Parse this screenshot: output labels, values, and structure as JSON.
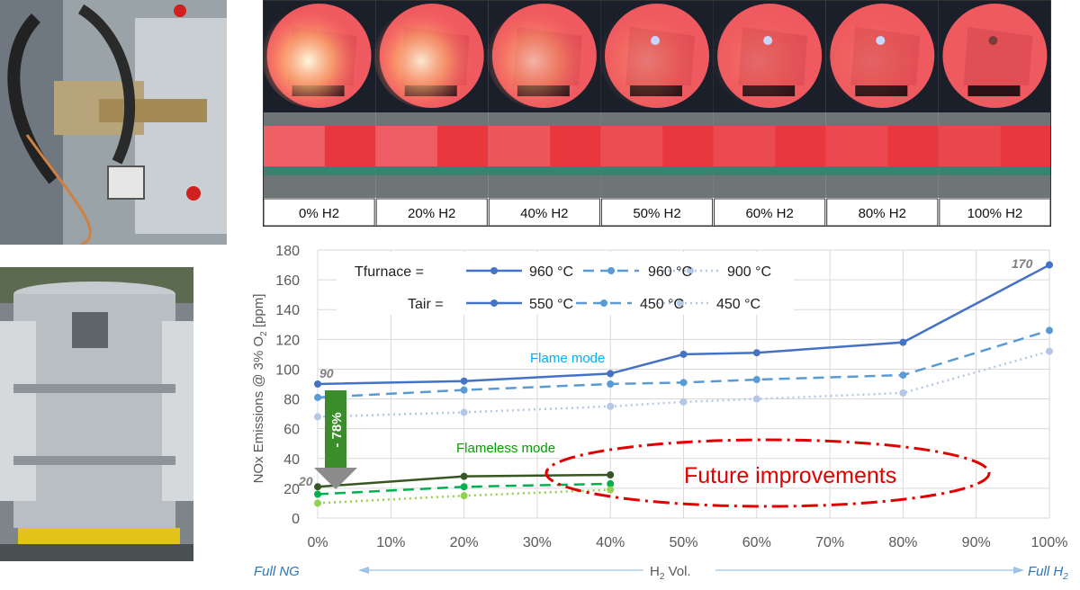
{
  "flame_images": {
    "labels": [
      "0% H2",
      "20% H2",
      "40% H2",
      "50% H2",
      "60% H2",
      "80% H2",
      "100% H2"
    ],
    "glow": [
      1.0,
      0.9,
      0.6,
      0.25,
      0.15,
      0.12,
      0.0
    ]
  },
  "chart_data": {
    "type": "line",
    "ylabel_parts": [
      "NOx Emissions @ 3% O",
      "2",
      " [ppm]"
    ],
    "x": [
      0,
      20,
      40,
      50,
      60,
      80,
      100
    ],
    "x_tick_labels": [
      "0%",
      "10%",
      "20%",
      "30%",
      "40%",
      "50%",
      "60%",
      "70%",
      "80%",
      "90%",
      "100%"
    ],
    "y_ticks": [
      0,
      20,
      40,
      60,
      80,
      100,
      120,
      140,
      160,
      180
    ],
    "xlim": [
      0,
      100
    ],
    "ylim": [
      0,
      180
    ],
    "grid": true,
    "legend_position": "top-left",
    "legend": {
      "tfurnace_label": "Tfurnace =",
      "tair_label": "Tair =",
      "tfurnace_values": [
        "960 °C",
        "960 °C",
        "900 °C"
      ],
      "tair_values": [
        "550 °C",
        "450 °C",
        "450 °C"
      ]
    },
    "series": [
      {
        "style": "solid",
        "color": "#4472c4",
        "x": [
          0,
          20,
          40,
          50,
          60,
          80,
          100
        ],
        "values": [
          90,
          92,
          97,
          110,
          111,
          118,
          170
        ]
      },
      {
        "style": "dashed",
        "color": "#5b9bd5",
        "x": [
          0,
          20,
          40,
          50,
          60,
          80,
          100
        ],
        "values": [
          81,
          86,
          90,
          91,
          93,
          96,
          126
        ]
      },
      {
        "style": "dotted",
        "color": "#b4c7e7",
        "x": [
          0,
          20,
          40,
          50,
          60,
          80,
          100
        ],
        "values": [
          68,
          71,
          75,
          78,
          80,
          84,
          112
        ]
      },
      {
        "style": "solid",
        "color": "#375623",
        "x": [
          0,
          20,
          40
        ],
        "values": [
          21,
          28,
          29
        ]
      },
      {
        "style": "dashed",
        "color": "#00b050",
        "x": [
          0,
          20,
          40
        ],
        "values": [
          16,
          21,
          23
        ]
      },
      {
        "style": "dotted",
        "color": "#92d050",
        "x": [
          0,
          20,
          40
        ],
        "values": [
          10,
          15,
          19
        ]
      }
    ],
    "annotations": {
      "flame_mode": "Flame mode",
      "flameless_mode": "Flameless mode",
      "value_90": "90",
      "value_170": "170",
      "value_20": "20",
      "reduction": "- 78%",
      "future": "Future improvements",
      "full_ng": "Full NG",
      "full_h2_prefix": "Full H",
      "full_h2_sub": "2",
      "h2_vol_prefix": "H",
      "h2_vol_sub": "2",
      "h2_vol_suffix": " Vol."
    },
    "colors": {
      "flame_mode_text": "#00b0f0",
      "flameless_text": "#00a000",
      "future_red": "#e00000",
      "reduction_arrow": "#3b8c2a",
      "axis_note_blue": "#2e75b6"
    }
  }
}
